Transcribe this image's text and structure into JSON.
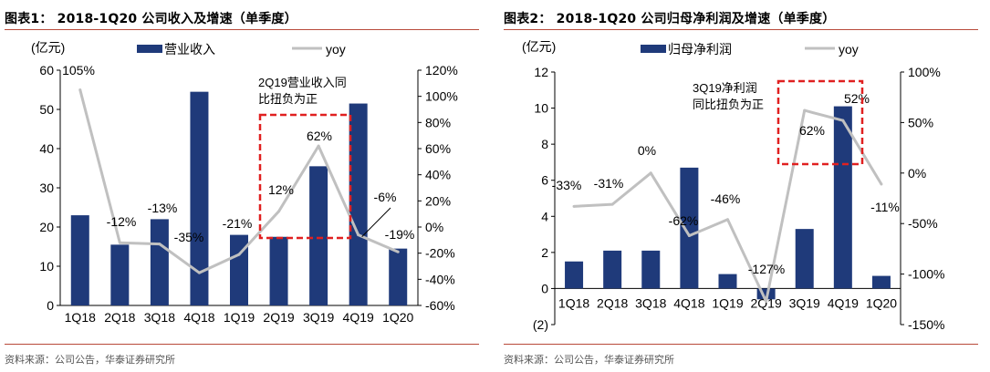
{
  "colors": {
    "bar": "#1f3a7a",
    "line": "#c0c0c0",
    "rule": "#b84a3a",
    "highlight": "#e02020"
  },
  "charts": [
    {
      "figure_label": "图表1：",
      "title": "2018-1Q20 公司收入及增速（单季度）",
      "unit_label": "(亿元)",
      "source": "资料来源：公司公告，华泰证券研究所",
      "annotation": [
        "2Q19营业收入同",
        "比扭负为正"
      ]
    },
    {
      "figure_label": "图表2：",
      "title": "2018-1Q20 公司归母净利润及增速（单季度）",
      "unit_label": "(亿元)",
      "source": "资料来源：公司公告，华泰证券研究所",
      "annotation": [
        "3Q19净利润",
        "同比扭负为正"
      ]
    }
  ],
  "chart_data": [
    {
      "type": "bar",
      "title": "2018-1Q20 公司收入及增速（单季度）",
      "categories": [
        "1Q18",
        "2Q18",
        "3Q18",
        "4Q18",
        "1Q19",
        "2Q19",
        "3Q19",
        "4Q19",
        "1Q20"
      ],
      "series": [
        {
          "name": "营业收入",
          "axis": "left",
          "type": "bar",
          "values": [
            23,
            15.5,
            22,
            54.5,
            18,
            17.5,
            35.5,
            51.5,
            14.5
          ]
        },
        {
          "name": "yoy",
          "axis": "right",
          "type": "line",
          "values": [
            105,
            -12,
            -13,
            -35,
            -21,
            12,
            62,
            -6,
            -19
          ],
          "labels": [
            "105%",
            "-12%",
            "-13%",
            "-35%",
            "-21%",
            "12%",
            "62%",
            "-6%",
            "-19%"
          ]
        }
      ],
      "ylim": [
        0,
        60
      ],
      "yticks": [
        0,
        10,
        20,
        30,
        40,
        50,
        60
      ],
      "ylabel": "(亿元)",
      "y2lim": [
        -60,
        120
      ],
      "y2ticks": [
        -60,
        -40,
        -20,
        0,
        20,
        40,
        60,
        80,
        100,
        120
      ],
      "y2ticklabels": [
        "-60%",
        "-40%",
        "-20%",
        "0%",
        "20%",
        "40%",
        "60%",
        "80%",
        "100%",
        "120%"
      ],
      "legend": [
        "营业收入",
        "yoy"
      ]
    },
    {
      "type": "bar",
      "title": "2018-1Q20 公司归母净利润及增速（单季度）",
      "categories": [
        "1Q18",
        "2Q18",
        "3Q18",
        "4Q18",
        "1Q19",
        "2Q19",
        "3Q19",
        "4Q19",
        "1Q20"
      ],
      "series": [
        {
          "name": "归母净利润",
          "axis": "left",
          "type": "bar",
          "values": [
            1.5,
            2.1,
            2.1,
            6.7,
            0.8,
            -0.6,
            3.3,
            10.1,
            0.7
          ]
        },
        {
          "name": "yoy",
          "axis": "right",
          "type": "line",
          "values": [
            -33,
            -31,
            0,
            -62,
            -46,
            -127,
            62,
            52,
            -11
          ],
          "labels": [
            "-33%",
            "-31%",
            "0%",
            "-62%",
            "-46%",
            "-127%",
            "62%",
            "52%",
            "-11%"
          ]
        }
      ],
      "ylim": [
        -2,
        12
      ],
      "yticks": [
        -2,
        0,
        2,
        4,
        6,
        8,
        10,
        12
      ],
      "yticklabels": [
        "(2)",
        "0",
        "2",
        "4",
        "6",
        "8",
        "10",
        "12"
      ],
      "ylabel": "(亿元)",
      "y2lim": [
        -150,
        100
      ],
      "y2ticks": [
        -150,
        -100,
        -50,
        0,
        50,
        100
      ],
      "y2ticklabels": [
        "-150%",
        "-100%",
        "-50%",
        "0%",
        "50%",
        "100%"
      ],
      "legend": [
        "归母净利润",
        "yoy"
      ]
    }
  ]
}
